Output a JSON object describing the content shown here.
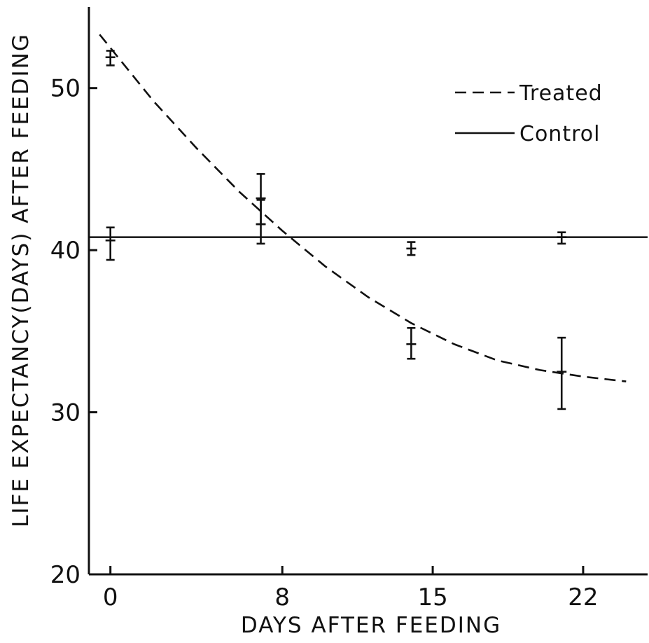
{
  "chart_data": {
    "type": "line",
    "xlabel": "DAYS AFTER FEEDING",
    "ylabel": "LIFE EXPECTANCY(DAYS) AFTER FEEDING",
    "x_ticks": [
      0,
      8,
      15,
      22
    ],
    "y_ticks": [
      20,
      30,
      40,
      50
    ],
    "xlim": [
      -1,
      25
    ],
    "ylim": [
      20,
      55
    ],
    "legend_position": "top-right",
    "grid": false,
    "series": [
      {
        "name": "Treated",
        "style": "dashed",
        "points": [
          {
            "x": 0,
            "y": 51.9,
            "low": 51.4,
            "high": 52.3
          },
          {
            "x": 7,
            "y": 43.2,
            "low": 41.6,
            "high": 44.7
          },
          {
            "x": 14,
            "y": 34.2,
            "low": 33.3,
            "high": 35.2
          },
          {
            "x": 21,
            "y": 32.5,
            "low": 30.2,
            "high": 34.6
          }
        ],
        "fit_curve": [
          {
            "x": -0.5,
            "y": 53.3
          },
          {
            "x": 2,
            "y": 49.2
          },
          {
            "x": 4,
            "y": 46.3
          },
          {
            "x": 6,
            "y": 43.6
          },
          {
            "x": 8,
            "y": 41.2
          },
          {
            "x": 10,
            "y": 39.0
          },
          {
            "x": 12,
            "y": 37.1
          },
          {
            "x": 14,
            "y": 35.5
          },
          {
            "x": 16,
            "y": 34.2
          },
          {
            "x": 18,
            "y": 33.2
          },
          {
            "x": 20,
            "y": 32.6
          },
          {
            "x": 22,
            "y": 32.2
          },
          {
            "x": 24,
            "y": 31.9
          }
        ]
      },
      {
        "name": "Control",
        "style": "solid",
        "level": 40.8,
        "points": [
          {
            "x": 0,
            "y": 40.6,
            "low": 39.4,
            "high": 41.4
          },
          {
            "x": 7,
            "y": 41.6,
            "low": 40.4,
            "high": 43.1
          },
          {
            "x": 14,
            "y": 40.1,
            "low": 39.7,
            "high": 40.5
          },
          {
            "x": 21,
            "y": 40.8,
            "low": 40.4,
            "high": 41.1
          }
        ]
      }
    ]
  }
}
